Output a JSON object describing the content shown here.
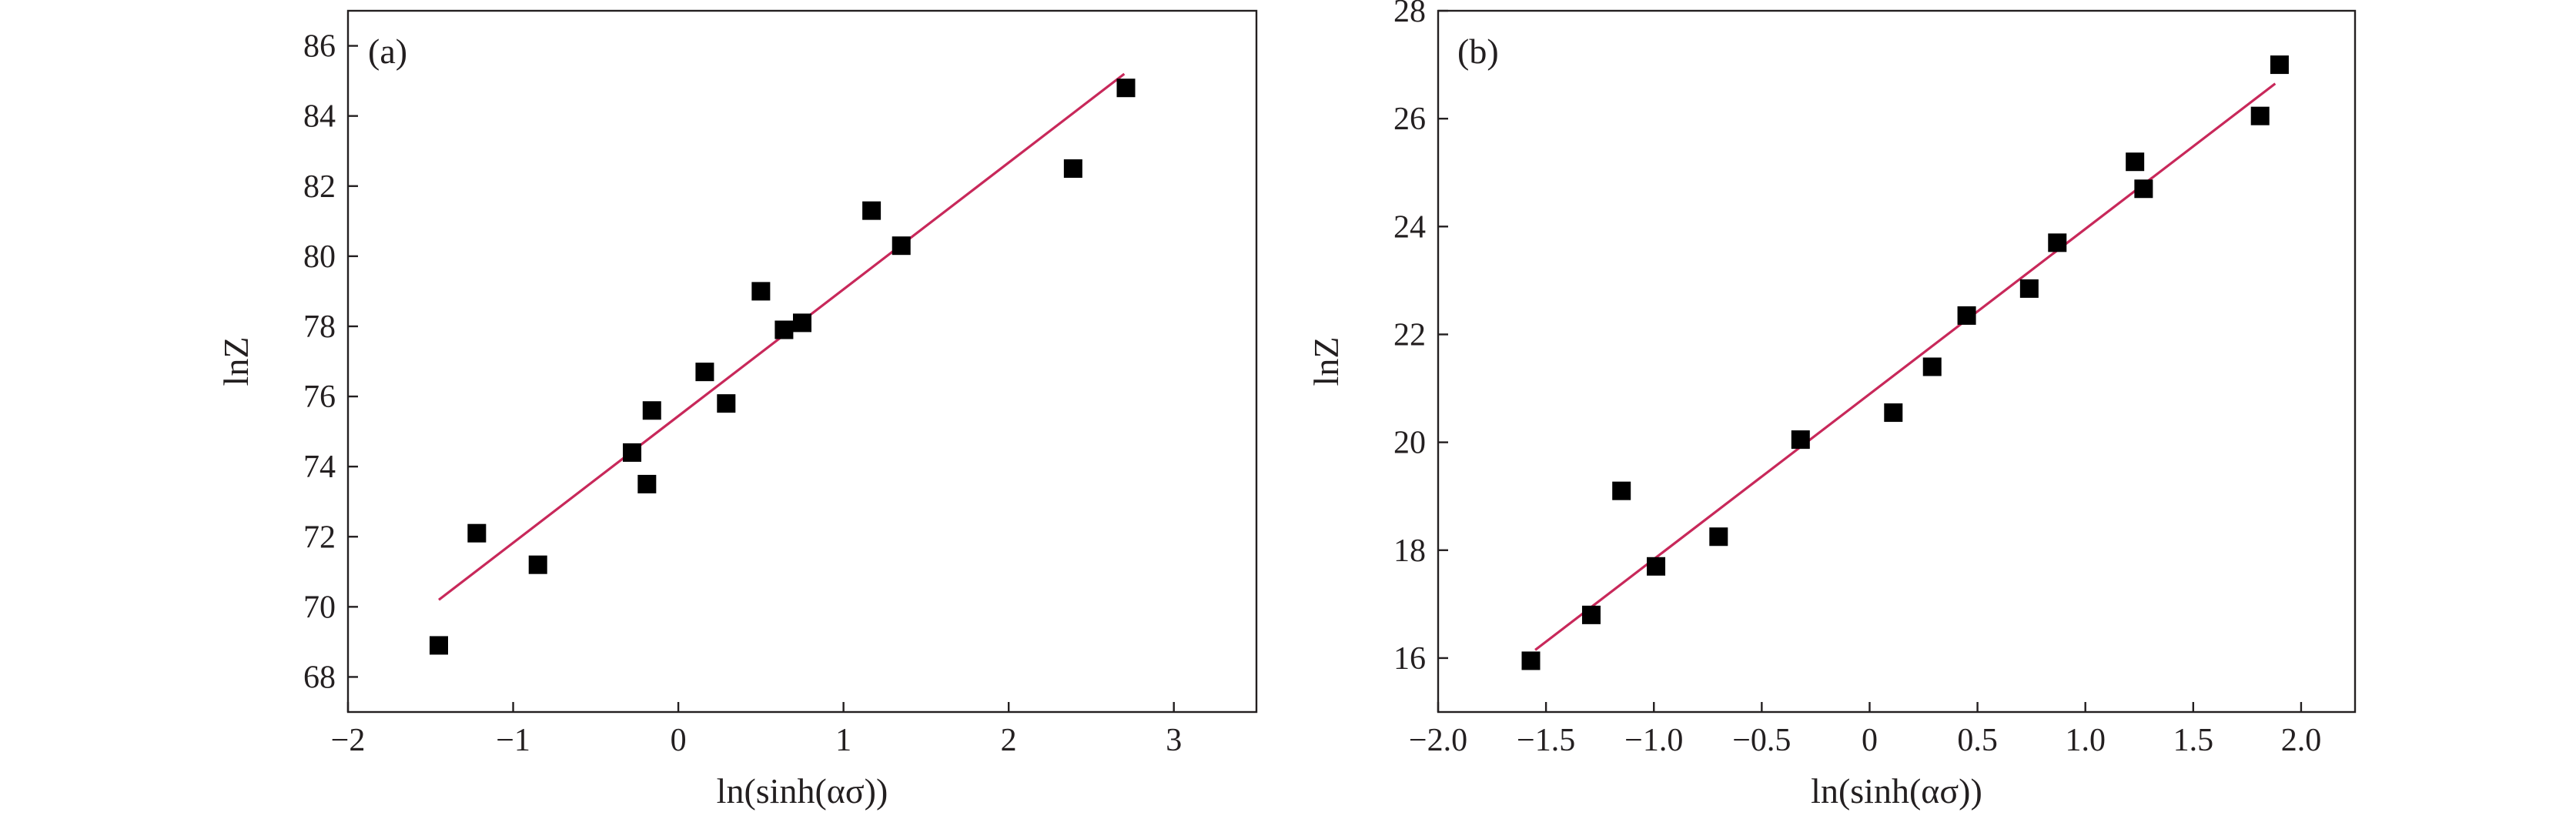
{
  "chart_data": [
    {
      "type": "scatter",
      "panel_label": "(a)",
      "title": "",
      "xlabel": "ln(sinh(ασ))",
      "ylabel": "lnZ",
      "xlim": [
        -2,
        3.5
      ],
      "ylim": [
        67,
        87
      ],
      "xticks": [
        -2,
        -1,
        0,
        1,
        2,
        3
      ],
      "xtick_labels": [
        "−2",
        "−1",
        "0",
        "1",
        "2",
        "3"
      ],
      "yticks": [
        68,
        70,
        72,
        74,
        76,
        78,
        80,
        82,
        84,
        86
      ],
      "ytick_labels": [
        "68",
        "70",
        "72",
        "74",
        "76",
        "78",
        "80",
        "82",
        "84",
        "86"
      ],
      "grid": false,
      "point_color": "#000000",
      "fit_color": "#c8285a",
      "series": [
        {
          "kind": "points",
          "x": [
            -1.45,
            -1.22,
            -0.85,
            -0.28,
            -0.19,
            -0.16,
            0.16,
            0.29,
            0.5,
            0.64,
            0.75,
            1.17,
            1.35,
            2.39,
            2.71
          ],
          "y": [
            68.9,
            72.1,
            71.2,
            74.4,
            73.5,
            75.6,
            76.7,
            75.8,
            79.0,
            77.9,
            78.1,
            81.3,
            80.3,
            82.5,
            84.8
          ]
        },
        {
          "kind": "fit",
          "x": [
            -1.45,
            2.7
          ],
          "y": [
            70.2,
            85.2
          ]
        }
      ]
    },
    {
      "type": "scatter",
      "panel_label": "(b)",
      "title": "",
      "xlabel": "ln(sinh(ασ))",
      "ylabel": "lnZ",
      "xlim": [
        -2.0,
        2.25
      ],
      "ylim": [
        15,
        28
      ],
      "xticks": [
        -2.0,
        -1.5,
        -1.0,
        -0.5,
        0,
        0.5,
        1.0,
        1.5,
        2.0
      ],
      "xtick_labels": [
        "−2.0",
        "−1.5",
        "−1.0",
        "−0.5",
        "0",
        "0.5",
        "1.0",
        "1.5",
        "2.0"
      ],
      "yticks": [
        16,
        18,
        20,
        22,
        24,
        26,
        28
      ],
      "ytick_labels": [
        "16",
        "18",
        "20",
        "22",
        "24",
        "26",
        "28"
      ],
      "grid": false,
      "point_color": "#000000",
      "fit_color": "#c8285a",
      "series": [
        {
          "kind": "points",
          "x": [
            -1.57,
            -1.29,
            -1.15,
            -0.99,
            -0.7,
            -0.32,
            0.11,
            0.29,
            0.45,
            0.74,
            0.87,
            1.23,
            1.27,
            1.81,
            1.9
          ],
          "y": [
            15.95,
            16.8,
            19.1,
            17.7,
            18.25,
            20.05,
            20.55,
            21.4,
            22.35,
            22.85,
            23.7,
            25.2,
            24.7,
            26.05,
            27.0
          ]
        },
        {
          "kind": "fit",
          "x": [
            -1.55,
            1.88
          ],
          "y": [
            16.15,
            26.65
          ]
        }
      ]
    }
  ]
}
